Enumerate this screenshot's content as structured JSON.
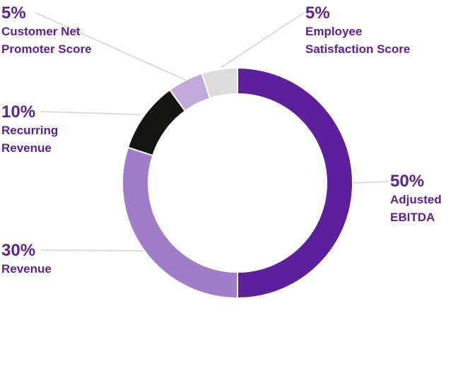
{
  "chart_data": {
    "type": "pie",
    "style": "donut",
    "slices": [
      {
        "pct_label": "50%",
        "label": "Adjusted\nEBITDA",
        "value": 50,
        "color": "#5e1f9c"
      },
      {
        "pct_label": "30%",
        "label": "Revenue",
        "value": 30,
        "color": "#a17cc8"
      },
      {
        "pct_label": "10%",
        "label": "Recurring\nRevenue",
        "value": 10,
        "color": "#131311"
      },
      {
        "pct_label": "5%",
        "label": "Customer Net\nPromoter Score",
        "value": 5,
        "color": "#c1a9dc"
      },
      {
        "pct_label": "5%",
        "label": "Employee\nSatisfaction Score",
        "value": 5,
        "color": "#dcdcdc"
      }
    ],
    "label_color": "#5b2197",
    "leader_line_color": "#dcdcdc"
  }
}
